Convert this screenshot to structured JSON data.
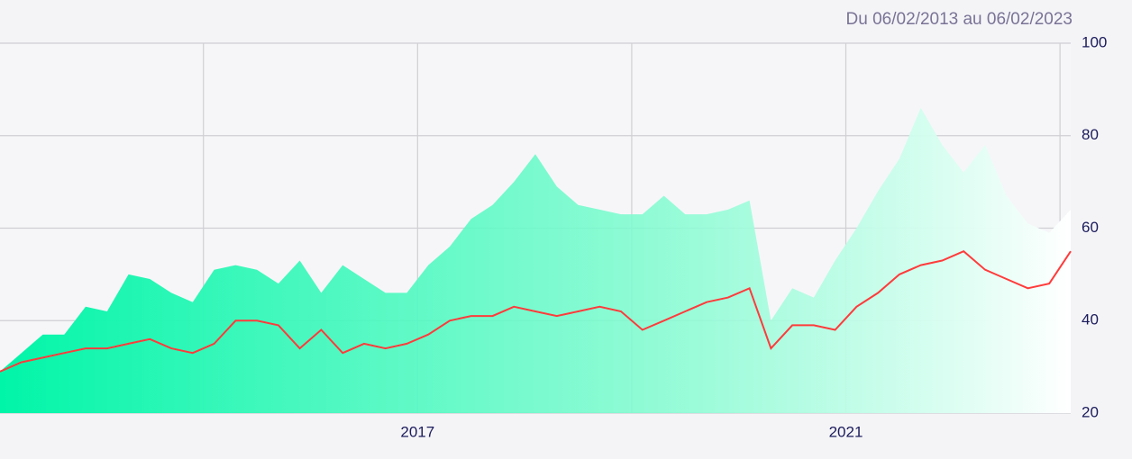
{
  "chart_data": {
    "type": "line",
    "subtitle": "Du 06/02/2013 au 06/02/2023",
    "x": [
      2013.1,
      2013.3,
      2013.5,
      2013.7,
      2013.9,
      2014.1,
      2014.3,
      2014.5,
      2014.7,
      2014.9,
      2015.1,
      2015.3,
      2015.5,
      2015.7,
      2015.9,
      2016.1,
      2016.3,
      2016.5,
      2016.7,
      2016.9,
      2017.1,
      2017.3,
      2017.5,
      2017.7,
      2017.9,
      2018.1,
      2018.3,
      2018.5,
      2018.7,
      2018.9,
      2019.1,
      2019.3,
      2019.5,
      2019.7,
      2019.9,
      2020.1,
      2020.3,
      2020.5,
      2020.7,
      2020.9,
      2021.1,
      2021.3,
      2021.5,
      2021.7,
      2021.9,
      2022.1,
      2022.3,
      2022.5,
      2022.7,
      2022.9,
      2023.1
    ],
    "series": [
      {
        "color": "#00f5a8",
        "fill": "area",
        "values": [
          29,
          33,
          37,
          37,
          43,
          42,
          50,
          49,
          46,
          44,
          51,
          52,
          51,
          48,
          53,
          46,
          52,
          49,
          46,
          46,
          52,
          56,
          62,
          65,
          70,
          76,
          69,
          65,
          64,
          63,
          63,
          67,
          63,
          63,
          64,
          66,
          40,
          47,
          45,
          53,
          60,
          68,
          75,
          86,
          78,
          72,
          78,
          67,
          61,
          59,
          64
        ]
      },
      {
        "color": "#ff3b3b",
        "values": [
          29,
          31,
          32,
          33,
          34,
          34,
          35,
          36,
          34,
          33,
          35,
          40,
          40,
          39,
          34,
          38,
          33,
          35,
          34,
          35,
          37,
          40,
          41,
          41,
          43,
          42,
          41,
          42,
          43,
          42,
          38,
          40,
          42,
          44,
          45,
          47,
          34,
          39,
          39,
          38,
          43,
          46,
          50,
          52,
          53,
          55,
          51,
          49,
          47,
          48,
          55
        ]
      }
    ],
    "xlim": [
      2013.1,
      2023.1
    ],
    "xticks": [
      {
        "value": 2015,
        "label": null
      },
      2017,
      {
        "value": 2019,
        "label": null
      },
      2021,
      {
        "value": 2023,
        "label": null
      }
    ],
    "ylim": [
      20,
      100
    ],
    "yticks": [
      20,
      40,
      60,
      80,
      100
    ],
    "grid": true
  }
}
